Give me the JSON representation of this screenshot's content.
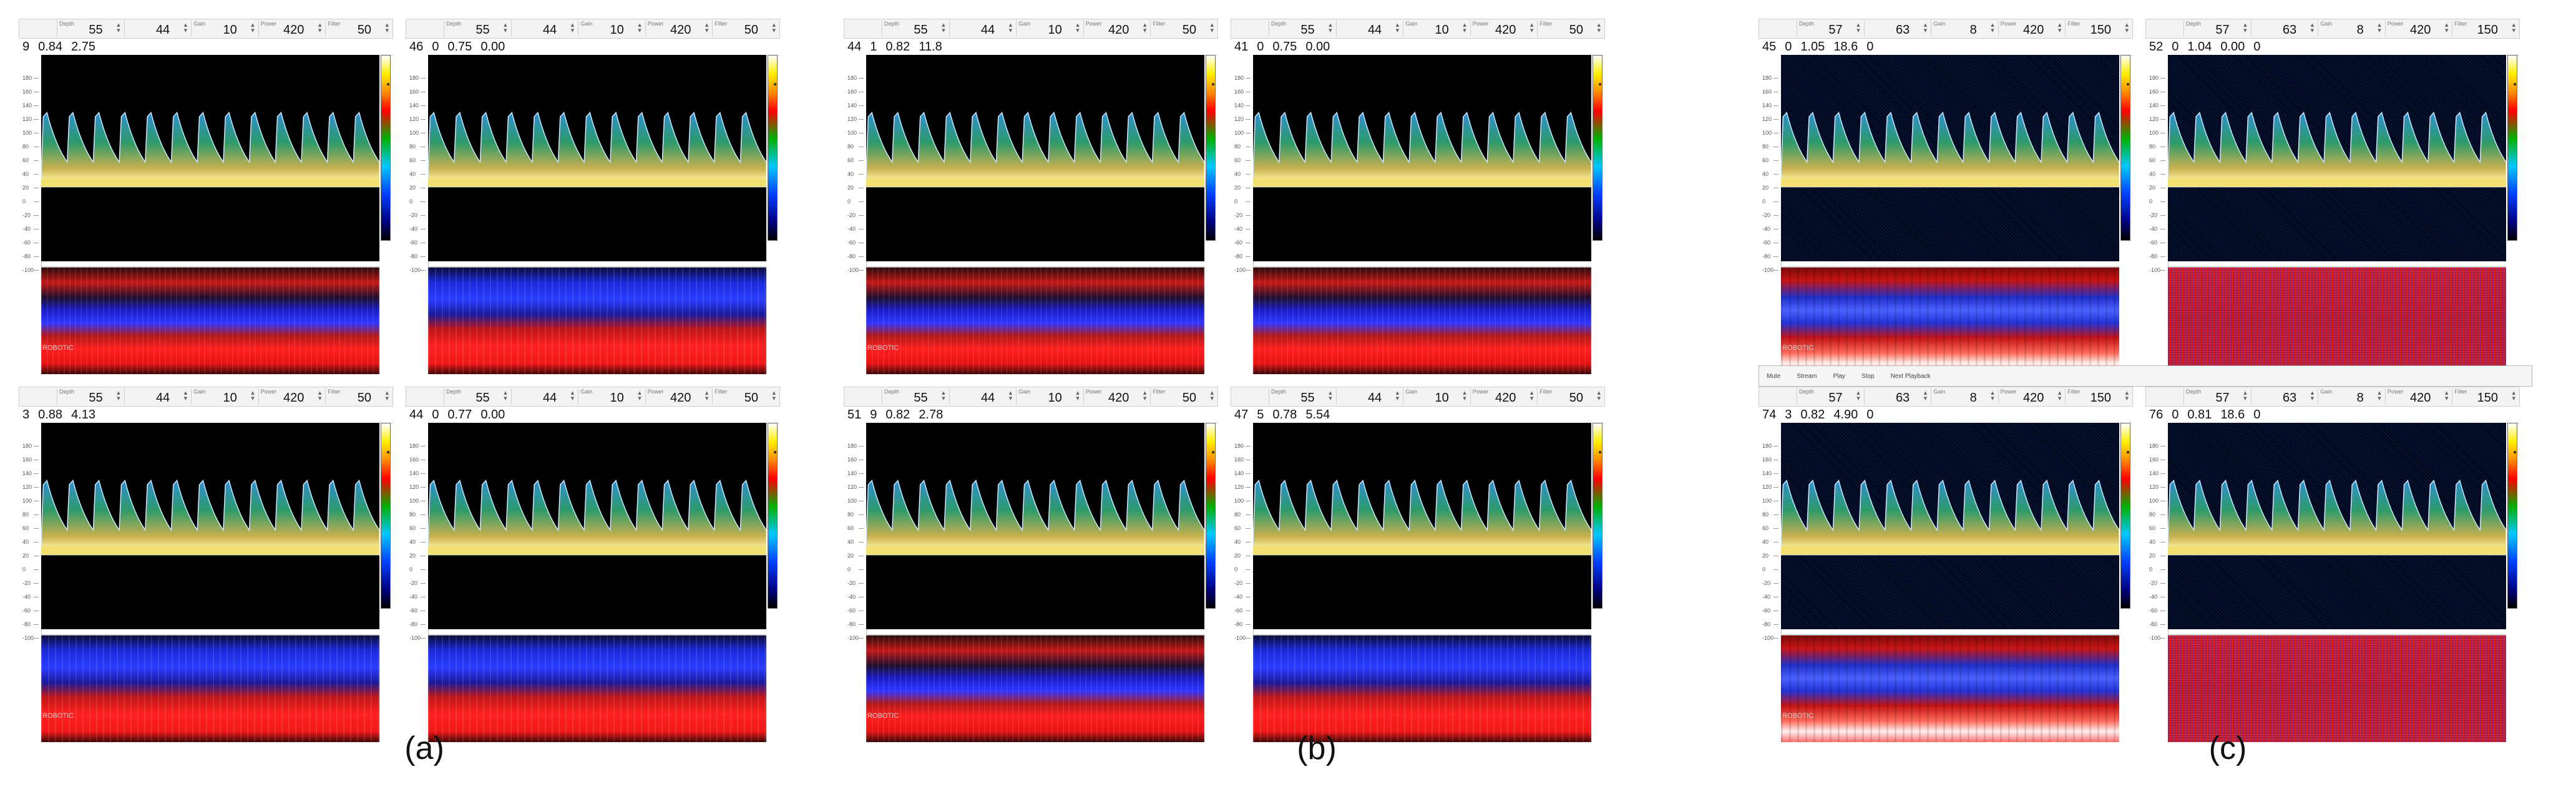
{
  "panel_labels": [
    "(a)",
    "(b)",
    "(c)"
  ],
  "control_field_labels": [
    "Depth",
    "",
    "Gain",
    "Power",
    "Filter"
  ],
  "groups": [
    {
      "key": "a",
      "quads": [
        {
          "controls": [
            "55",
            "44",
            "10",
            "420",
            "50"
          ],
          "info": [
            "9",
            "0.84",
            "2.75"
          ],
          "mmode": "red"
        },
        {
          "controls": [
            "55",
            "44",
            "10",
            "420",
            "50"
          ],
          "info": [
            "46",
            "0",
            "0.75",
            "0.00"
          ],
          "mmode": "blue"
        },
        {
          "controls": [
            "55",
            "44",
            "10",
            "420",
            "50"
          ],
          "info": [
            "3",
            "0.88",
            "4.13"
          ],
          "mmode": "blue"
        },
        {
          "controls": [
            "55",
            "44",
            "10",
            "420",
            "50"
          ],
          "info": [
            "44",
            "0",
            "0.77",
            "0.00"
          ],
          "mmode": "blue"
        }
      ]
    },
    {
      "key": "b",
      "quads": [
        {
          "controls": [
            "55",
            "44",
            "10",
            "420",
            "50"
          ],
          "info": [
            "44",
            "1",
            "0.82",
            "11.8"
          ],
          "mmode": "red"
        },
        {
          "controls": [
            "55",
            "44",
            "10",
            "420",
            "50"
          ],
          "info": [
            "41",
            "0",
            "0.75",
            "0.00"
          ],
          "mmode": "red"
        },
        {
          "controls": [
            "55",
            "44",
            "10",
            "420",
            "50"
          ],
          "info": [
            "51",
            "9",
            "0.82",
            "2.78"
          ],
          "mmode": "red"
        },
        {
          "controls": [
            "55",
            "44",
            "10",
            "420",
            "50"
          ],
          "info": [
            "47",
            "5",
            "0.78",
            "5.54"
          ],
          "mmode": "blue"
        }
      ]
    },
    {
      "key": "c",
      "quads": [
        {
          "controls": [
            "57",
            "63",
            "8",
            "420",
            "150"
          ],
          "info": [
            "45",
            "0",
            "1.05",
            "18.6",
            "0"
          ],
          "mmode": "ss"
        },
        {
          "controls": [
            "57",
            "63",
            "8",
            "420",
            "150"
          ],
          "info": [
            "52",
            "0",
            "1.04",
            "0.00",
            "0"
          ],
          "mmode": "noise"
        },
        {
          "controls": [
            "57",
            "63",
            "8",
            "420",
            "150"
          ],
          "info": [
            "74",
            "3",
            "0.82",
            "4.90",
            "0"
          ],
          "mmode": "ss"
        },
        {
          "controls": [
            "57",
            "63",
            "8",
            "420",
            "150"
          ],
          "info": [
            "76",
            "0",
            "0.81",
            "18.6",
            "0"
          ],
          "mmode": "noise"
        }
      ]
    }
  ],
  "scale_ticks": [
    "180",
    "160",
    "140",
    "120",
    "100",
    "80",
    "60",
    "40",
    "20",
    "0",
    "-20",
    "-40",
    "-60",
    "-80",
    "-100"
  ],
  "toolbar_c": [
    "Mute",
    "Stream",
    "Play",
    "Stop",
    "Next Playback"
  ],
  "logo_text": "ROBOTIC"
}
